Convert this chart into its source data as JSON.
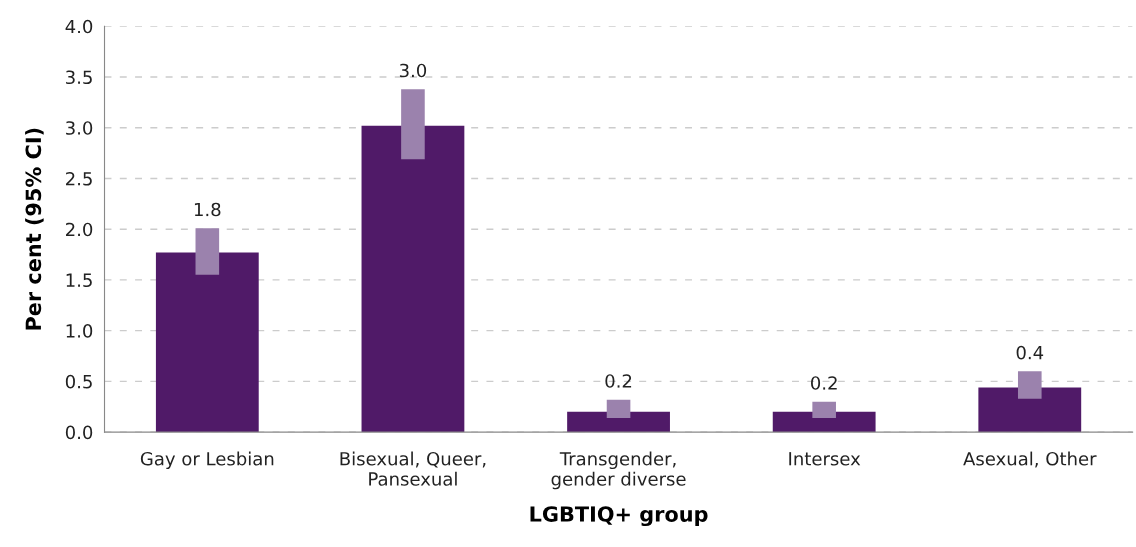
{
  "chart_data": {
    "type": "bar",
    "xlabel": "LGBTIQ+ group",
    "ylabel": "Per cent (95% CI)",
    "categories": [
      "Gay or Lesbian",
      "Bisexual, Queer,\nPansexual",
      "Transgender,\ngender diverse",
      "Intersex",
      "Asexual, Other"
    ],
    "values": [
      1.77,
      3.02,
      0.2,
      0.2,
      0.44
    ],
    "errors": [
      [
        1.55,
        2.01
      ],
      [
        2.69,
        3.38
      ],
      [
        0.14,
        0.32
      ],
      [
        0.14,
        0.3
      ],
      [
        0.33,
        0.6
      ]
    ],
    "value_labels": [
      "1.8",
      "3.0",
      "0.2",
      "0.2",
      "0.4"
    ],
    "color": "#501a68",
    "ylim": [
      0,
      4
    ],
    "yticks": [
      {
        "value": 0,
        "label": "0.0"
      },
      {
        "value": 0.5,
        "label": "0.5"
      },
      {
        "value": 1,
        "label": "1.0"
      },
      {
        "value": 1.5,
        "label": "1.5"
      },
      {
        "value": 2,
        "label": "2.0"
      },
      {
        "value": 2.5,
        "label": "2.5"
      },
      {
        "value": 3,
        "label": "3.0"
      },
      {
        "value": 3.5,
        "label": "3.5"
      },
      {
        "value": 4,
        "label": "4.0"
      }
    ],
    "grid": "y"
  }
}
